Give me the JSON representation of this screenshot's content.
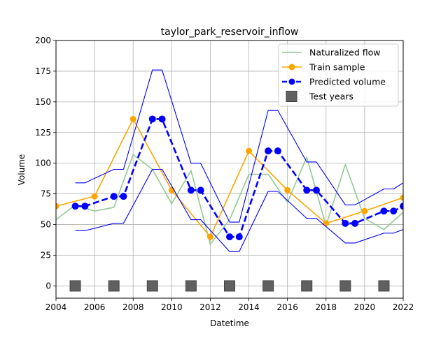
{
  "chart_data": {
    "type": "line",
    "title": "taylor_park_reservoir_inflow",
    "xlabel": "Datetime",
    "ylabel": "Volume",
    "xlim": [
      2004,
      2022
    ],
    "ylim": [
      -10,
      200
    ],
    "x_ticks": [
      2004,
      2006,
      2008,
      2010,
      2012,
      2014,
      2016,
      2018,
      2020,
      2022
    ],
    "x_tick_labels": [
      "2004",
      "2006",
      "2008",
      "2010",
      "2012",
      "2014",
      "2016",
      "2018",
      "2020",
      "2022"
    ],
    "y_ticks": [
      0,
      25,
      50,
      75,
      100,
      125,
      150,
      175,
      200
    ],
    "y_tick_labels": [
      "0",
      "25",
      "50",
      "75",
      "100",
      "125",
      "150",
      "175",
      "200"
    ],
    "grid": true,
    "legend_position": "top-right",
    "series": [
      {
        "name": "Naturalized flow",
        "color": "#93c993",
        "style": "solid",
        "x": [
          2004,
          2005,
          2006,
          2007,
          2008,
          2009,
          2010,
          2011,
          2012,
          2013,
          2014,
          2015,
          2016,
          2017,
          2018,
          2019,
          2020,
          2021,
          2022
        ],
        "y": [
          54,
          66,
          61,
          64,
          107,
          95,
          67,
          94,
          34,
          54,
          91,
          91,
          68,
          105,
          49,
          99,
          55,
          46,
          60
        ]
      },
      {
        "name": "Train sample",
        "color": "#ffa500",
        "style": "solid",
        "markers": true,
        "x": [
          2004,
          2006,
          2008,
          2010,
          2012,
          2014,
          2016,
          2018,
          2020,
          2022
        ],
        "y": [
          65,
          73,
          136,
          78,
          40,
          110,
          78,
          51,
          61,
          72
        ]
      },
      {
        "name": "Predicted volume",
        "color": "#0000ff",
        "style": "dashed",
        "markers": true,
        "x": [
          2005,
          2005.5,
          2007,
          2007.5,
          2009,
          2009.5,
          2011,
          2011.5,
          2013,
          2013.5,
          2015,
          2015.5,
          2017,
          2017.5,
          2019,
          2019.5,
          2021,
          2021.5,
          2022
        ],
        "y": [
          65,
          65,
          73,
          73,
          136,
          136,
          78,
          78,
          40,
          40,
          110,
          110,
          78,
          78,
          51,
          51,
          61,
          61,
          65
        ]
      },
      {
        "name": "",
        "color": "#0000ff",
        "style": "thin",
        "x": [
          2005,
          2005.5,
          2007,
          2007.5,
          2009,
          2009.5,
          2011,
          2011.5,
          2013,
          2013.5,
          2015,
          2015.5,
          2017,
          2017.5,
          2019,
          2019.5,
          2021,
          2021.5,
          2022
        ],
        "y": [
          84,
          84,
          95,
          95,
          176,
          176,
          100,
          100,
          52,
          52,
          143,
          143,
          101,
          101,
          66,
          66,
          79,
          79,
          84
        ]
      },
      {
        "name": "",
        "color": "#0000ff",
        "style": "thin",
        "x": [
          2005,
          2005.5,
          2007,
          2007.5,
          2009,
          2009.5,
          2011,
          2011.5,
          2013,
          2013.5,
          2015,
          2015.5,
          2017,
          2017.5,
          2019,
          2019.5,
          2021,
          2021.5,
          2022
        ],
        "y": [
          45,
          45,
          51,
          51,
          95,
          95,
          54,
          54,
          28,
          28,
          77,
          77,
          55,
          55,
          35,
          35,
          43,
          43,
          46
        ]
      },
      {
        "name": "Test years",
        "color": "#606060",
        "style": "squares",
        "x": [
          2005,
          2007,
          2009,
          2011,
          2013,
          2015,
          2017,
          2019,
          2021
        ],
        "y": [
          0,
          0,
          0,
          0,
          0,
          0,
          0,
          0,
          0
        ]
      }
    ],
    "legend": [
      {
        "label": "Naturalized flow",
        "kind": "line",
        "color": "#93c993"
      },
      {
        "label": "Train sample",
        "kind": "line-marker",
        "color": "#ffa500"
      },
      {
        "label": "Predicted volume",
        "kind": "dashed-marker",
        "color": "#0000ff"
      },
      {
        "label": "Test years",
        "kind": "square",
        "color": "#606060"
      }
    ]
  }
}
